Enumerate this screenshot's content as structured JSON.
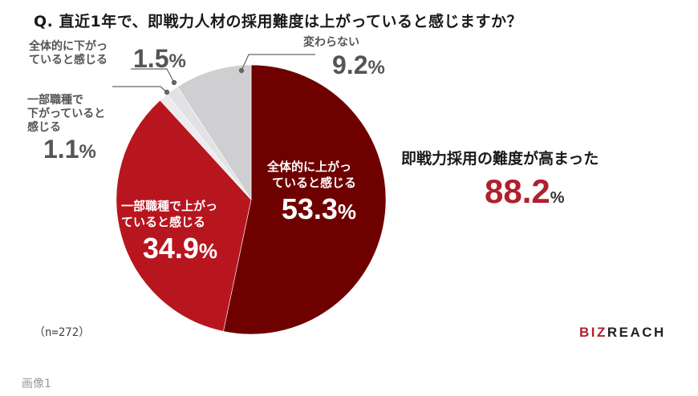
{
  "title": "Q. 直近1年で、即戦力人材の採用難度は上がっていると感じますか？",
  "chart_data": {
    "type": "pie",
    "title": "Q. 直近1年で、即戦力人材の採用難度は上がっていると感じますか？",
    "categories": [
      "全体的に上がっていると感じる",
      "一部職種で上がっていると感じる",
      "一部職種で下がっていると感じる",
      "全体的に下がっていると感じる",
      "変わらない"
    ],
    "values": [
      53.3,
      34.9,
      1.1,
      1.5,
      9.2
    ],
    "unit": "%",
    "colors": [
      "#6e0000",
      "#b8161f",
      "#ececec",
      "#e2e2e4",
      "#cfcfd1"
    ],
    "start_angle": "12 o'clock, clockwise",
    "sample_size": "n=272",
    "annotation": "即戦力採用の難度が高まった 88.2%"
  },
  "labels": {
    "up_all": {
      "text_line1": "全体的に上が",
      "text_line2": "っ",
      "line_a": "全体的に上がっ",
      "line_b": "ていると感じる",
      "value": "53.3",
      "pct": "%"
    },
    "up_some": {
      "line_a": "一部職種で上がっ",
      "line_b": "ていると感じる",
      "value": "34.9",
      "pct": "%"
    },
    "down_some": {
      "line_a": "一部職種で",
      "line_b": "下がっていると",
      "line_c": "感じる",
      "value": "1.1",
      "pct": "%"
    },
    "down_all": {
      "line_a": "全体的に下がっ",
      "line_b": "ていると感じる",
      "value": "1.5",
      "pct": "%"
    },
    "same": {
      "line_a": "変わらない",
      "value": "9.2",
      "pct": "%"
    }
  },
  "summary": {
    "text": "即戦力採用の難度が高まった",
    "value": "88.2",
    "pct": "%"
  },
  "sample": "（n=272）",
  "logo": {
    "biz": "BIZ",
    "reach": "REACH"
  },
  "caption": "画像1"
}
